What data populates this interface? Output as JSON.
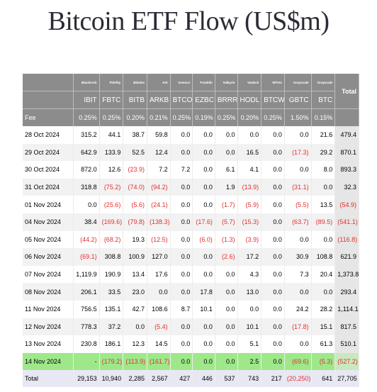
{
  "title": "Bitcoin ETF Flow (US$m)",
  "issuers": [
    "Blackrock",
    "Fidelity",
    "Bitwise",
    "Ark",
    "Invesco",
    "Franklin",
    "Valkyrie",
    "VanEck",
    "WTree",
    "Grayscale",
    "Grayscale"
  ],
  "total_header": "Total",
  "tickers": [
    "IBIT",
    "FBTC",
    "BITB",
    "ARKB",
    "BTCO",
    "EZBC",
    "BRRR",
    "HODL",
    "BTCW",
    "GBTC",
    "BTC"
  ],
  "fee_label": "Fee",
  "fees": [
    "0.25%",
    "0.25%",
    "0.20%",
    "0.21%",
    "0.25%",
    "0.19%",
    "0.25%",
    "0.20%",
    "0.25%",
    "1.50%",
    "0.15%"
  ],
  "rows": [
    {
      "date": "28 Oct 2024",
      "values": [
        "315.2",
        "44.1",
        "38.7",
        "59.8",
        "0.0",
        "0.0",
        "0.0",
        "0.0",
        "0.0",
        "0.0",
        "21.6"
      ],
      "total": "479.4"
    },
    {
      "date": "29 Oct 2024",
      "values": [
        "642.9",
        "133.9",
        "52.5",
        "12.4",
        "0.0",
        "0.0",
        "0.0",
        "16.5",
        "0.0",
        "(17.3)",
        "29.2"
      ],
      "total": "870.1"
    },
    {
      "date": "30 Oct 2024",
      "values": [
        "872.0",
        "12.6",
        "(23.9)",
        "7.2",
        "7.2",
        "0.0",
        "6.1",
        "4.1",
        "0.0",
        "0.0",
        "8.0"
      ],
      "total": "893.3"
    },
    {
      "date": "31 Oct 2024",
      "values": [
        "318.8",
        "(75.2)",
        "(74.0)",
        "(94.2)",
        "0.0",
        "0.0",
        "1.9",
        "(13.9)",
        "0.0",
        "(31.1)",
        "0.0"
      ],
      "total": "32.3"
    },
    {
      "date": "01 Nov 2024",
      "values": [
        "0.0",
        "(25.6)",
        "(5.6)",
        "(24.1)",
        "0.0",
        "0.0",
        "(1.7)",
        "(5.9)",
        "0.0",
        "(5.5)",
        "13.5"
      ],
      "total": "(54.9)"
    },
    {
      "date": "04 Nov 2024",
      "values": [
        "38.4",
        "(169.6)",
        "(79.8)",
        "(138.3)",
        "0.0",
        "(17.6)",
        "(5.7)",
        "(15.3)",
        "0.0",
        "(63.7)",
        "(89.5)"
      ],
      "total": "(541.1)"
    },
    {
      "date": "05 Nov 2024",
      "values": [
        "(44.2)",
        "(68.2)",
        "19.3",
        "(12.5)",
        "0.0",
        "(6.0)",
        "(1.3)",
        "(3.9)",
        "0.0",
        "0.0",
        "0.0"
      ],
      "total": "(116.8)"
    },
    {
      "date": "06 Nov 2024",
      "values": [
        "(69.1)",
        "308.8",
        "100.9",
        "127.0",
        "0.0",
        "0.0",
        "(2.6)",
        "17.2",
        "0.0",
        "30.9",
        "108.8"
      ],
      "total": "621.9"
    },
    {
      "date": "07 Nov 2024",
      "values": [
        "1,119.9",
        "190.9",
        "13.4",
        "17.6",
        "0.0",
        "0.0",
        "0.0",
        "4.3",
        "0.0",
        "7.3",
        "20.4"
      ],
      "total": "1,373.8"
    },
    {
      "date": "08 Nov 2024",
      "values": [
        "206.1",
        "33.5",
        "23.0",
        "0.0",
        "0.0",
        "17.8",
        "0.0",
        "13.0",
        "0.0",
        "0.0",
        "0.0"
      ],
      "total": "293.4"
    },
    {
      "date": "11 Nov 2024",
      "values": [
        "756.5",
        "135.1",
        "42.7",
        "108.6",
        "8.7",
        "10.1",
        "0.0",
        "0.0",
        "0.0",
        "24.2",
        "28.2"
      ],
      "total": "1,114.1"
    },
    {
      "date": "12 Nov 2024",
      "values": [
        "778.3",
        "37.2",
        "0.0",
        "(5.4)",
        "0.0",
        "0.0",
        "0.0",
        "10.1",
        "0.0",
        "(17.8)",
        "15.1"
      ],
      "total": "817.5"
    },
    {
      "date": "13 Nov 2024",
      "values": [
        "230.8",
        "186.1",
        "12.3",
        "14.5",
        "0.0",
        "0.0",
        "0.0",
        "5.1",
        "0.0",
        "0.0",
        "61.3"
      ],
      "total": "510.1"
    },
    {
      "date": "14 Nov 2024",
      "values": [
        "-",
        "(179.2)",
        "(113.9)",
        "(161.7)",
        "0.0",
        "0.0",
        "0.0",
        "2.5",
        "0.0",
        "(69.6)",
        "(5.3)"
      ],
      "total": "(527.2)",
      "highlight": true
    }
  ],
  "total_row": {
    "label": "Total",
    "values": [
      "29,153",
      "10,940",
      "2,285",
      "2,567",
      "427",
      "446",
      "537",
      "743",
      "217",
      "(20,250)",
      "641"
    ],
    "total": "27,705"
  },
  "colors": {
    "header_bg": "#8c8c8c",
    "negative": "#e03030",
    "highlight_row": "#9ee88a"
  }
}
